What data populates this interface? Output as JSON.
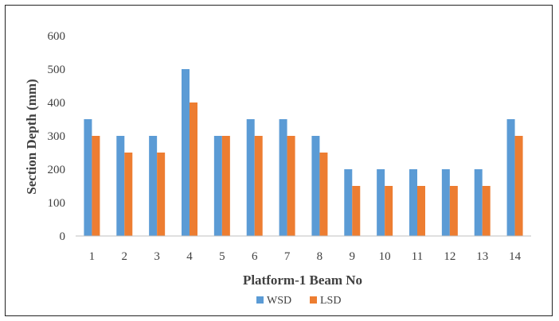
{
  "chart_data": {
    "type": "bar",
    "title": "",
    "xlabel": "Platform-1 Beam No",
    "ylabel": "Section Depth (mm)",
    "categories": [
      "1",
      "2",
      "3",
      "4",
      "5",
      "6",
      "7",
      "8",
      "9",
      "10",
      "11",
      "12",
      "13",
      "14"
    ],
    "series": [
      {
        "name": "WSD",
        "color": "#5B9BD5",
        "values": [
          350,
          300,
          300,
          500,
          300,
          350,
          350,
          300,
          200,
          200,
          200,
          200,
          200,
          350
        ]
      },
      {
        "name": "LSD",
        "color": "#ED7D31",
        "values": [
          300,
          250,
          250,
          400,
          300,
          300,
          300,
          250,
          150,
          150,
          150,
          150,
          150,
          300
        ]
      }
    ],
    "ylim": [
      0,
      600
    ],
    "yticks": [
      0,
      100,
      200,
      300,
      400,
      500,
      600
    ],
    "grid": false,
    "legend_position": "bottom"
  }
}
